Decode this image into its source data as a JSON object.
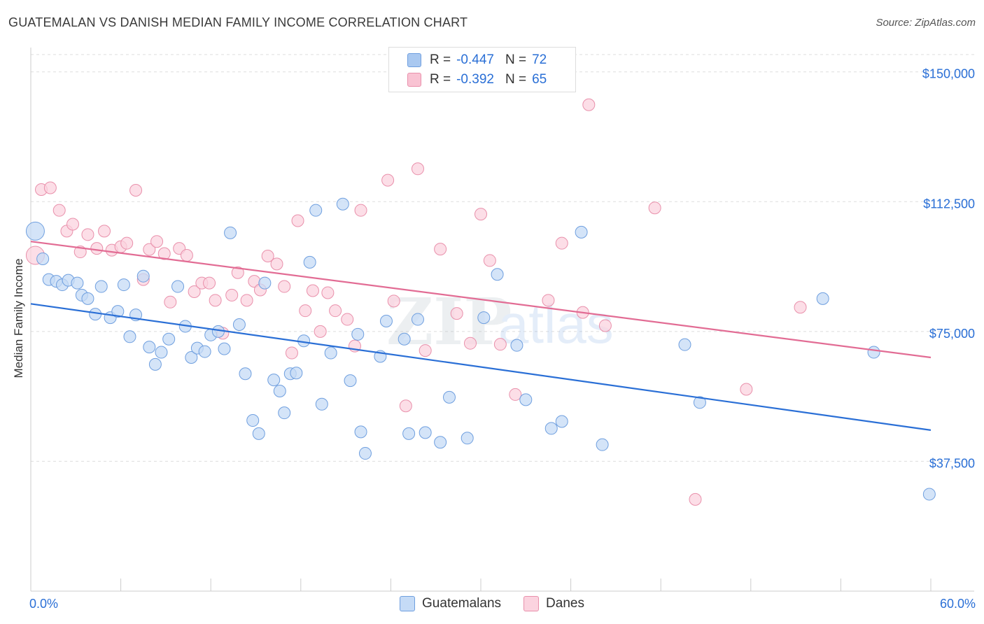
{
  "header": {
    "title": "GUATEMALAN VS DANISH MEDIAN FAMILY INCOME CORRELATION CHART",
    "source": "Source: ZipAtlas.com"
  },
  "watermark": {
    "zip": "ZIP",
    "atlas": "atlas"
  },
  "stats": [
    {
      "r_label": "R =",
      "r_value": "-0.447",
      "n_label": "N =",
      "n_value": "72",
      "color": "#a9c8f0",
      "border": "#6f9fdf"
    },
    {
      "r_label": "R =",
      "r_value": "-0.392",
      "n_label": "N =",
      "n_value": "65",
      "color": "#f9c3d3",
      "border": "#e990ab"
    }
  ],
  "legend": [
    {
      "label": "Guatemalans",
      "color": "#c5dbf6",
      "border": "#6f9fdf"
    },
    {
      "label": "Danes",
      "color": "#fbd3df",
      "border": "#e990ab"
    }
  ],
  "chart_data": {
    "type": "scatter",
    "title": "GUATEMALAN VS DANISH MEDIAN FAMILY INCOME CORRELATION CHART",
    "xlabel": "",
    "ylabel": "Median Family Income",
    "xlim": [
      0,
      60
    ],
    "ylim": [
      0,
      155000
    ],
    "x_tick_labels": [
      "0.0%",
      "60.0%"
    ],
    "y_ticks": [
      37500,
      75000,
      112500,
      150000
    ],
    "y_tick_labels": [
      "$37,500",
      "$75,000",
      "$112,500",
      "$150,000"
    ],
    "grid": true,
    "series": [
      {
        "name": "Guatemalans",
        "color": "#2a6fd6",
        "fill": "#c5dbf6",
        "trend": [
          [
            0,
            83000
          ],
          [
            60,
            46500
          ]
        ],
        "points": [
          [
            0.3,
            104000
          ],
          [
            0.8,
            96000
          ],
          [
            1.2,
            90000
          ],
          [
            1.7,
            89500
          ],
          [
            2.1,
            88500
          ],
          [
            2.5,
            89800
          ],
          [
            3.1,
            89000
          ],
          [
            3.4,
            85500
          ],
          [
            3.8,
            84500
          ],
          [
            4.3,
            80000
          ],
          [
            4.7,
            88000
          ],
          [
            5.3,
            79000
          ],
          [
            5.8,
            80800
          ],
          [
            6.2,
            88500
          ],
          [
            6.6,
            73500
          ],
          [
            7.0,
            79800
          ],
          [
            7.5,
            91000
          ],
          [
            7.9,
            70500
          ],
          [
            8.3,
            65500
          ],
          [
            8.7,
            69000
          ],
          [
            9.2,
            72800
          ],
          [
            9.8,
            88000
          ],
          [
            10.3,
            76500
          ],
          [
            10.7,
            67500
          ],
          [
            11.1,
            70200
          ],
          [
            11.6,
            69200
          ],
          [
            12.0,
            74000
          ],
          [
            12.5,
            75000
          ],
          [
            12.9,
            70000
          ],
          [
            13.3,
            103500
          ],
          [
            13.9,
            77000
          ],
          [
            14.3,
            62800
          ],
          [
            14.8,
            49300
          ],
          [
            15.2,
            45500
          ],
          [
            15.6,
            89000
          ],
          [
            16.2,
            61000
          ],
          [
            16.6,
            57800
          ],
          [
            16.9,
            51500
          ],
          [
            17.3,
            62800
          ],
          [
            17.7,
            63000
          ],
          [
            18.2,
            72300
          ],
          [
            18.6,
            95000
          ],
          [
            19.0,
            110000
          ],
          [
            19.4,
            54000
          ],
          [
            20.0,
            68800
          ],
          [
            20.8,
            111800
          ],
          [
            21.3,
            60800
          ],
          [
            21.8,
            74200
          ],
          [
            22.0,
            46000
          ],
          [
            22.3,
            39800
          ],
          [
            23.3,
            67800
          ],
          [
            23.7,
            78000
          ],
          [
            24.9,
            72800
          ],
          [
            25.2,
            45500
          ],
          [
            25.8,
            78500
          ],
          [
            26.3,
            45800
          ],
          [
            27.3,
            43000
          ],
          [
            27.9,
            56000
          ],
          [
            29.1,
            44200
          ],
          [
            30.2,
            79000
          ],
          [
            31.1,
            91500
          ],
          [
            32.4,
            71000
          ],
          [
            33.0,
            55300
          ],
          [
            34.7,
            47000
          ],
          [
            35.4,
            49000
          ],
          [
            36.7,
            103700
          ],
          [
            38.1,
            42300
          ],
          [
            43.6,
            71200
          ],
          [
            44.6,
            54500
          ],
          [
            52.8,
            84500
          ],
          [
            56.2,
            69000
          ],
          [
            59.9,
            28000
          ]
        ]
      },
      {
        "name": "Danes",
        "color": "#e26c94",
        "fill": "#fbd3df",
        "trend": [
          [
            0,
            101000
          ],
          [
            60,
            67500
          ]
        ],
        "points": [
          [
            0.3,
            97000
          ],
          [
            0.7,
            116000
          ],
          [
            1.3,
            116500
          ],
          [
            1.9,
            110000
          ],
          [
            2.4,
            104000
          ],
          [
            2.8,
            106000
          ],
          [
            3.3,
            98000
          ],
          [
            3.8,
            103000
          ],
          [
            4.4,
            99000
          ],
          [
            4.9,
            104000
          ],
          [
            5.4,
            98500
          ],
          [
            6.0,
            99500
          ],
          [
            6.4,
            100500
          ],
          [
            7.0,
            115800
          ],
          [
            7.5,
            90000
          ],
          [
            7.9,
            98700
          ],
          [
            8.4,
            101000
          ],
          [
            8.9,
            97500
          ],
          [
            9.3,
            83500
          ],
          [
            9.9,
            99000
          ],
          [
            10.4,
            97000
          ],
          [
            10.9,
            86500
          ],
          [
            11.4,
            89000
          ],
          [
            11.9,
            89000
          ],
          [
            12.3,
            84000
          ],
          [
            12.8,
            74500
          ],
          [
            13.4,
            85500
          ],
          [
            13.8,
            92000
          ],
          [
            14.4,
            84000
          ],
          [
            14.9,
            89500
          ],
          [
            15.3,
            87000
          ],
          [
            15.8,
            96800
          ],
          [
            16.4,
            94500
          ],
          [
            16.9,
            88000
          ],
          [
            17.4,
            68800
          ],
          [
            17.8,
            107000
          ],
          [
            18.3,
            81000
          ],
          [
            18.8,
            86800
          ],
          [
            19.3,
            75000
          ],
          [
            19.8,
            86200
          ],
          [
            20.3,
            81000
          ],
          [
            21.1,
            78500
          ],
          [
            21.6,
            70800
          ],
          [
            22.0,
            110000
          ],
          [
            23.8,
            118700
          ],
          [
            24.2,
            83800
          ],
          [
            25.0,
            53500
          ],
          [
            25.8,
            122000
          ],
          [
            26.3,
            69500
          ],
          [
            27.3,
            98800
          ],
          [
            28.4,
            80200
          ],
          [
            29.3,
            71600
          ],
          [
            30.0,
            108900
          ],
          [
            30.6,
            95500
          ],
          [
            31.3,
            71300
          ],
          [
            32.3,
            56800
          ],
          [
            34.5,
            84000
          ],
          [
            35.4,
            100500
          ],
          [
            36.8,
            80500
          ],
          [
            37.2,
            140500
          ],
          [
            38.3,
            76700
          ],
          [
            41.6,
            110700
          ],
          [
            44.3,
            26500
          ],
          [
            47.7,
            58300
          ],
          [
            51.3,
            82000
          ]
        ]
      }
    ]
  }
}
